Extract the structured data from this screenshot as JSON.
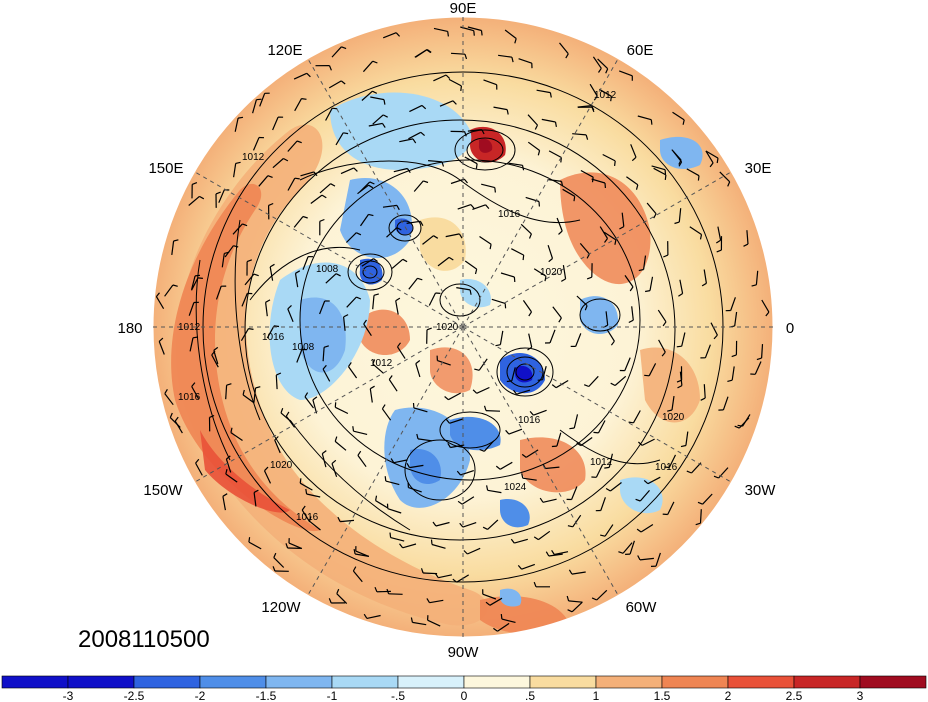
{
  "map": {
    "projection": "north-polar-stereographic",
    "longitude_labels": [
      "90E",
      "60E",
      "120E",
      "150E",
      "30E",
      "180",
      "0",
      "150W",
      "30W",
      "120W",
      "60W",
      "90W"
    ],
    "date_label": "2008110500",
    "isobar_labels": [
      "1012",
      "1012",
      "1016",
      "1008",
      "1016",
      "1020",
      "1012",
      "1008",
      "1012",
      "1016",
      "1016",
      "1024",
      "1020",
      "1020",
      "1016",
      "1012",
      "1016",
      "1020"
    ]
  },
  "colorbar": {
    "tick_labels": [
      "-3",
      "-2.5",
      "-2",
      "-1.5",
      "-1",
      "-.5",
      "0",
      ".5",
      "1",
      "1.5",
      "2",
      "2.5",
      "3"
    ],
    "colors": [
      "#1010c8",
      "#2f63e0",
      "#4f8ee8",
      "#7fb6f0",
      "#a9d9f5",
      "#d8f1fb",
      "#fdf7dd",
      "#f9dca0",
      "#f4b079",
      "#ef8553",
      "#e95138",
      "#c82626",
      "#a00c20"
    ]
  }
}
